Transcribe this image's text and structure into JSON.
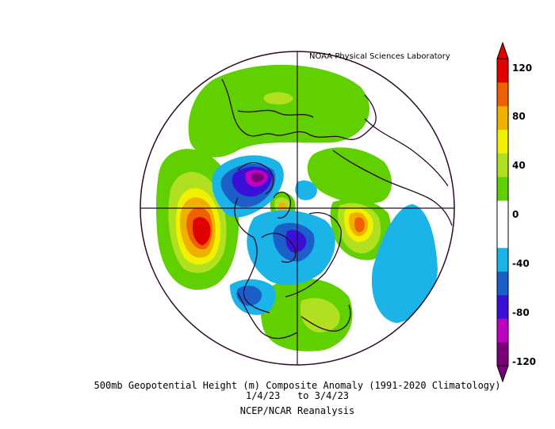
{
  "credit": "NOAA Physical Sciences Laboratory",
  "caption": {
    "line1": "500mb Geopotential Height (m) Composite Anomaly (1991-2020 Climatology)",
    "line2": "1/4/23   to 3/4/23",
    "line3": "NCEP/NCAR Reanalysis"
  },
  "colorbar": {
    "ticks": [
      "120",
      "80",
      "40",
      "0",
      "-40",
      "-80",
      "-120"
    ],
    "colors": [
      "#7a007a",
      "#c000c0",
      "#3a10d8",
      "#1a60c8",
      "#1ab4e8",
      "#ffffff",
      "#ffffff",
      "#60d000",
      "#b0e020",
      "#f0f000",
      "#f0b000",
      "#f06000",
      "#e00000"
    ]
  },
  "map": {
    "projection": "north-polar-stereographic",
    "field": "500mb geopotential height anomaly"
  }
}
